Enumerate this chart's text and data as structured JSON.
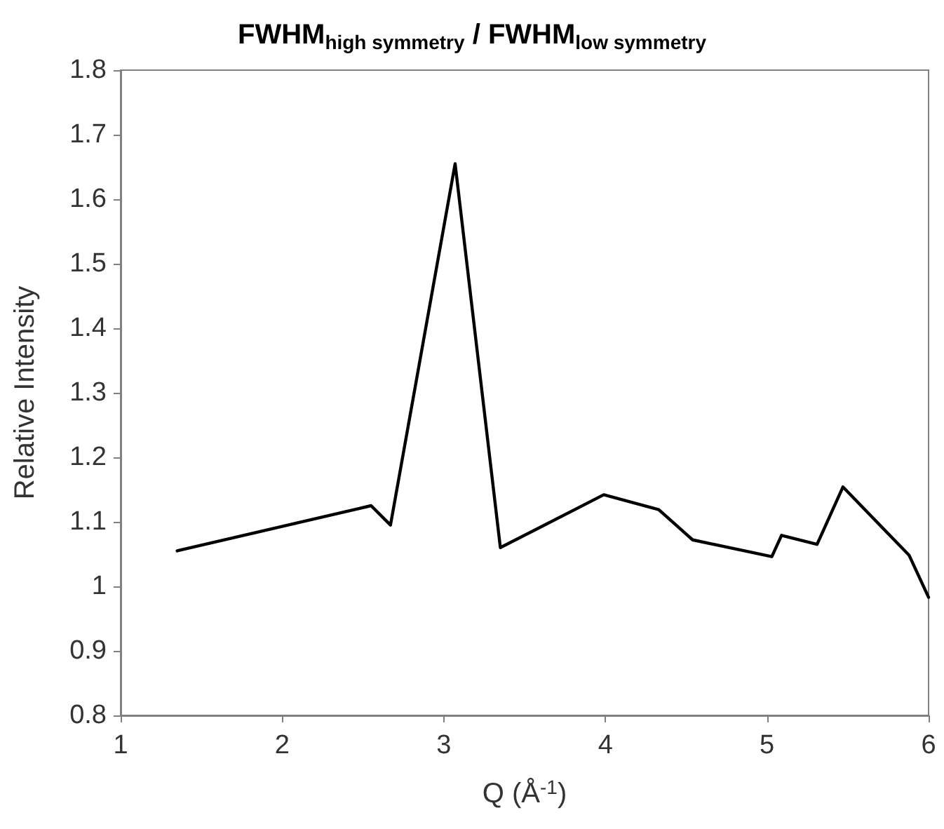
{
  "chart_data": {
    "type": "line",
    "title": "FWHM$_{high symmetry}$ / FWHM$_{low symmetry}$",
    "xlabel": "Q (Å$^{-1}$)",
    "ylabel": "Relative Intensity",
    "x": [
      1.35,
      2.55,
      2.67,
      3.07,
      3.35,
      3.99,
      4.33,
      4.54,
      5.03,
      5.09,
      5.31,
      5.47,
      5.88,
      6.0
    ],
    "series": [
      {
        "color": "#000000",
        "values": [
          1.055,
          1.125,
          1.095,
          1.655,
          1.06,
          1.142,
          1.119,
          1.072,
          1.046,
          1.079,
          1.065,
          1.154,
          1.048,
          0.983
        ]
      }
    ],
    "xlim": [
      1,
      6
    ],
    "xticks": [
      1,
      2,
      3,
      4,
      5,
      6
    ],
    "ylim": [
      0.8,
      1.8
    ],
    "yticks": [
      0.8,
      0.9,
      1,
      1.1,
      1.2,
      1.3,
      1.4,
      1.5,
      1.6,
      1.7,
      1.8
    ],
    "grid": false,
    "marker": "none",
    "line_style": "solid"
  }
}
